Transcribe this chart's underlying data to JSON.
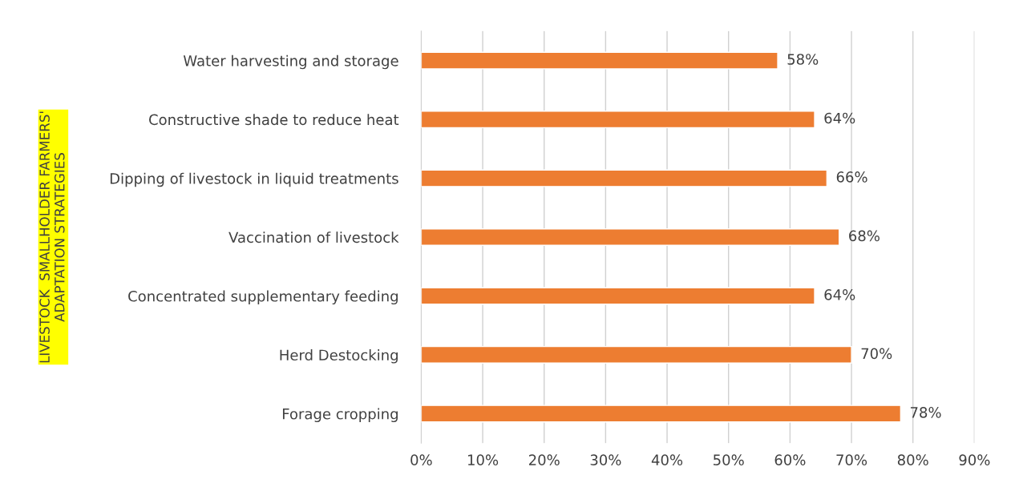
{
  "chart_data": {
    "type": "bar",
    "orientation": "horizontal",
    "ylabel": "LIVESTOCK  SMALLHOLDER FARMERS'\nADAPTATION STRATEGIES",
    "categories": [
      "Water harvesting and storage",
      "Constructive shade to reduce heat",
      "Dipping of livestock in liquid treatments",
      "Vaccination of livestock",
      "Concentrated supplementary feeding",
      "Herd Destocking",
      "Forage cropping"
    ],
    "values": [
      58,
      64,
      66,
      68,
      64,
      70,
      78
    ],
    "value_labels": [
      "58%",
      "64%",
      "66%",
      "68%",
      "64%",
      "70%",
      "78%"
    ],
    "color": "#ed7d31",
    "xlim": [
      0,
      90
    ],
    "xticks": [
      {
        "value": 0,
        "label": "0%"
      },
      {
        "value": 10,
        "label": "10%"
      },
      {
        "value": 20,
        "label": "20%"
      },
      {
        "value": 30,
        "label": "30%"
      },
      {
        "value": 40,
        "label": "40%"
      },
      {
        "value": 50,
        "label": "50%"
      },
      {
        "value": 60,
        "label": "60%"
      },
      {
        "value": 70,
        "label": "70%"
      },
      {
        "value": 80,
        "label": "80%"
      },
      {
        "value": 90,
        "label": "90%"
      }
    ],
    "grid": "x",
    "legend": false
  }
}
